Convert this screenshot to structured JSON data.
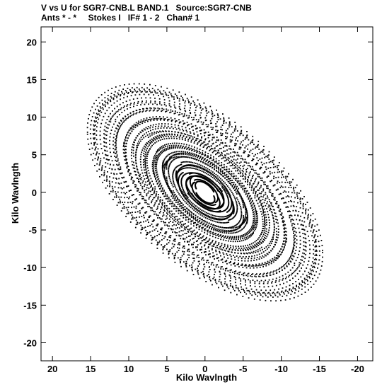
{
  "header": {
    "title_line1": "V vs U for SGR7-CNB.L BAND.1   Source:SGR7-CNB",
    "title_line2": "Ants * - *     Stokes I   IF# 1 - 2   Chan# 1"
  },
  "chart_data": {
    "type": "scatter",
    "title": "V vs U for SGR7-CNB.L BAND.1   Source:SGR7-CNB",
    "subtitle": "Ants * - *     Stokes I   IF# 1 - 2   Chan# 1",
    "xlabel": "Kilo Wavlngth",
    "ylabel": "Kilo Wavlngth",
    "xlim": [
      21.5,
      -22
    ],
    "ylim": [
      -22.4,
      22
    ],
    "x_reversed": true,
    "xticks": [
      20,
      15,
      10,
      5,
      0,
      -5,
      -10,
      -15,
      -20
    ],
    "yticks": [
      20,
      15,
      10,
      5,
      0,
      -5,
      -10,
      -15,
      -20
    ],
    "xtick_labels": [
      "20",
      "15",
      "10",
      "5",
      "0",
      "-5",
      "-10",
      "-15",
      "-20"
    ],
    "ytick_labels": [
      "20",
      "15",
      "10",
      "5",
      "0",
      "-5",
      "-10",
      "-15",
      "-20"
    ],
    "marker_color": "#000000",
    "grid": false,
    "points_description_note": "",
    "tracks": {
      "hour_angles_deg": [
        -90,
        90
      ],
      "samples_per_track": 60,
      "baselines": [
        [
          2.4,
          1.0,
          0.3
        ],
        [
          2.8,
          -1.6,
          0.2
        ],
        [
          3.4,
          0.5,
          -0.1
        ],
        [
          4.0,
          -2.2,
          0.3
        ],
        [
          4.6,
          1.8,
          0.1
        ],
        [
          5.2,
          -0.8,
          -0.2
        ],
        [
          5.8,
          2.6,
          0.2
        ],
        [
          6.4,
          -3.0,
          0.1
        ],
        [
          7.0,
          0.2,
          0.4
        ],
        [
          7.6,
          -1.2,
          -0.3
        ],
        [
          8.2,
          3.1,
          0.0
        ],
        [
          8.8,
          -2.6,
          0.2
        ],
        [
          9.4,
          1.4,
          -0.1
        ],
        [
          10.0,
          -3.4,
          0.3
        ],
        [
          10.6,
          2.2,
          0.1
        ],
        [
          11.2,
          -0.4,
          0.2
        ],
        [
          11.8,
          3.6,
          -0.2
        ],
        [
          12.4,
          -1.9,
          0.1
        ],
        [
          13.0,
          0.9,
          0.3
        ],
        [
          13.6,
          -3.8,
          0.0
        ],
        [
          14.2,
          2.9,
          0.2
        ],
        [
          14.8,
          -1.0,
          -0.1
        ],
        [
          15.4,
          4.0,
          0.1
        ],
        [
          16.0,
          -2.9,
          0.2
        ],
        [
          16.6,
          1.6,
          0.0
        ],
        [
          17.2,
          -4.2,
          0.1
        ],
        [
          17.8,
          3.3,
          -0.2
        ],
        [
          18.4,
          -0.6,
          0.2
        ],
        [
          19.0,
          4.4,
          0.1
        ],
        [
          19.6,
          -3.5,
          0.0
        ],
        [
          20.2,
          2.0,
          0.1
        ],
        [
          20.8,
          -1.4,
          0.0
        ],
        [
          21.4,
          0.6,
          0.1
        ],
        [
          1.6,
          0.6,
          0.2
        ],
        [
          1.9,
          -1.1,
          0.1
        ],
        [
          3.1,
          2.4,
          -0.2
        ],
        [
          4.3,
          -3.2,
          0.1
        ],
        [
          6.1,
          3.8,
          0.2
        ],
        [
          7.3,
          -4.0,
          0.0
        ],
        [
          9.1,
          4.3,
          0.1
        ],
        [
          10.3,
          -4.5,
          0.2
        ],
        [
          12.1,
          4.6,
          -0.1
        ],
        [
          13.3,
          -4.6,
          0.1
        ],
        [
          15.1,
          4.8,
          0.0
        ],
        [
          16.3,
          -4.8,
          0.1
        ],
        [
          18.1,
          4.9,
          0.2
        ],
        [
          19.3,
          -4.9,
          0.0
        ]
      ],
      "declination_deg": -29,
      "x_scale": -1.0,
      "y_scale": 0.975
    }
  },
  "axes": {
    "x_label": "Kilo Wavlngth",
    "y_label": "Kilo Wavlngth"
  }
}
